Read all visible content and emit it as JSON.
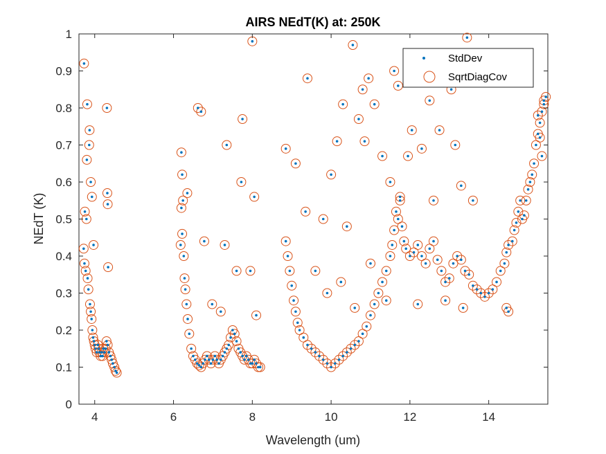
{
  "chart_data": {
    "type": "scatter",
    "title": "AIRS NEdT(K) at: 250K",
    "xlabel": "Wavelength (um)",
    "ylabel": "NEdT (K)",
    "xlim": [
      3.6,
      15.5
    ],
    "ylim": [
      0,
      1
    ],
    "xticks": [
      "4",
      "6",
      "8",
      "10",
      "12",
      "14"
    ],
    "yticks": [
      "0",
      "0.1",
      "0.2",
      "0.3",
      "0.4",
      "0.5",
      "0.6",
      "0.7",
      "0.8",
      "0.9",
      "1"
    ],
    "grid": false,
    "box": true,
    "legend": {
      "position": "top-right",
      "entries": [
        "StdDev",
        "SqrtDiagCov"
      ]
    },
    "colors": {
      "stddev": "#0072BD",
      "sqrtdiagcov": "#D95319",
      "axis": "#262626"
    },
    "series": [
      {
        "name": "StdDev",
        "marker": "dot",
        "x": [
          3.72,
          3.74,
          3.75,
          3.77,
          3.79,
          3.8,
          3.82,
          3.84,
          3.86,
          3.88,
          3.9,
          3.92,
          3.94,
          3.96,
          3.98,
          4.0,
          4.02,
          4.05,
          4.08,
          4.1,
          4.12,
          4.15,
          4.18,
          4.2,
          4.22,
          4.25,
          4.28,
          4.3,
          4.33,
          4.36,
          4.4,
          4.43,
          4.46,
          4.5,
          4.53,
          4.56,
          3.73,
          3.81,
          3.87,
          3.9,
          3.93,
          3.97,
          4.31,
          4.32,
          4.33,
          4.34,
          6.18,
          6.2,
          6.22,
          6.24,
          6.26,
          6.28,
          6.3,
          6.33,
          6.36,
          6.4,
          6.45,
          6.5,
          6.55,
          6.6,
          6.65,
          6.7,
          6.75,
          6.8,
          6.85,
          6.9,
          6.95,
          7.0,
          7.05,
          7.1,
          7.15,
          7.2,
          7.25,
          7.3,
          7.35,
          7.4,
          7.45,
          7.5,
          7.55,
          7.6,
          7.65,
          7.7,
          7.75,
          7.8,
          7.85,
          7.9,
          7.95,
          8.0,
          8.05,
          8.1,
          8.15,
          8.2,
          6.2,
          6.22,
          6.35,
          6.62,
          6.7,
          6.78,
          6.98,
          7.3,
          7.35,
          7.72,
          7.75,
          8.0,
          8.05,
          7.2,
          7.6,
          7.95,
          8.1,
          8.85,
          8.9,
          8.95,
          9.0,
          9.05,
          9.1,
          9.15,
          9.2,
          9.3,
          9.4,
          9.5,
          9.6,
          9.7,
          9.8,
          9.9,
          10.0,
          10.1,
          10.2,
          10.3,
          10.4,
          10.5,
          10.6,
          10.7,
          10.8,
          10.9,
          11.0,
          11.1,
          11.2,
          11.3,
          11.4,
          11.5,
          11.55,
          11.6,
          11.65,
          11.7,
          11.75,
          8.85,
          9.1,
          9.4,
          10.3,
          10.55,
          10.8,
          10.95,
          11.1,
          11.6,
          11.7,
          9.35,
          9.8,
          10.0,
          10.15,
          10.4,
          10.7,
          10.85,
          11.3,
          11.5,
          9.6,
          9.9,
          10.25,
          10.6,
          11.0,
          11.4,
          11.75,
          11.8,
          11.85,
          11.9,
          12.0,
          12.1,
          12.2,
          12.3,
          12.4,
          12.5,
          12.6,
          12.7,
          12.8,
          12.9,
          13.0,
          13.1,
          13.2,
          13.3,
          13.4,
          13.5,
          13.6,
          13.7,
          13.8,
          13.9,
          14.0,
          14.1,
          14.2,
          14.3,
          14.4,
          14.45,
          14.5,
          12.05,
          12.3,
          12.5,
          12.75,
          13.05,
          13.15,
          13.45,
          11.95,
          12.6,
          13.3,
          13.6,
          12.2,
          12.9,
          13.35,
          14.45,
          14.5,
          14.6,
          14.65,
          14.7,
          14.75,
          14.8,
          14.85,
          14.9,
          14.95,
          15.0,
          15.05,
          15.1,
          15.15,
          15.2,
          15.25,
          15.3,
          15.35,
          15.4,
          15.45,
          15.25,
          15.3,
          15.35,
          15.4
        ],
        "y": [
          0.42,
          0.38,
          0.52,
          0.36,
          0.5,
          0.66,
          0.34,
          0.31,
          0.7,
          0.27,
          0.25,
          0.23,
          0.2,
          0.18,
          0.17,
          0.16,
          0.15,
          0.14,
          0.16,
          0.15,
          0.14,
          0.13,
          0.14,
          0.13,
          0.15,
          0.14,
          0.15,
          0.17,
          0.16,
          0.14,
          0.13,
          0.12,
          0.11,
          0.1,
          0.09,
          0.085,
          0.92,
          0.81,
          0.74,
          0.6,
          0.56,
          0.43,
          0.8,
          0.57,
          0.54,
          0.37,
          0.43,
          0.68,
          0.62,
          0.55,
          0.4,
          0.34,
          0.31,
          0.27,
          0.23,
          0.19,
          0.15,
          0.13,
          0.12,
          0.11,
          0.105,
          0.1,
          0.11,
          0.12,
          0.13,
          0.12,
          0.11,
          0.12,
          0.13,
          0.12,
          0.11,
          0.12,
          0.13,
          0.14,
          0.15,
          0.16,
          0.18,
          0.2,
          0.19,
          0.17,
          0.15,
          0.14,
          0.13,
          0.12,
          0.13,
          0.12,
          0.11,
          0.11,
          0.12,
          0.11,
          0.1,
          0.1,
          0.53,
          0.46,
          0.57,
          0.8,
          0.79,
          0.44,
          0.27,
          0.43,
          0.7,
          0.6,
          0.77,
          0.98,
          0.56,
          0.25,
          0.36,
          0.36,
          0.24,
          0.44,
          0.4,
          0.36,
          0.32,
          0.28,
          0.25,
          0.22,
          0.2,
          0.18,
          0.16,
          0.15,
          0.14,
          0.13,
          0.12,
          0.11,
          0.1,
          0.11,
          0.12,
          0.13,
          0.14,
          0.15,
          0.16,
          0.17,
          0.19,
          0.21,
          0.24,
          0.27,
          0.3,
          0.33,
          0.36,
          0.4,
          0.43,
          0.47,
          0.52,
          0.5,
          0.55,
          0.69,
          0.65,
          0.88,
          0.81,
          0.97,
          0.85,
          0.88,
          0.81,
          0.9,
          0.86,
          0.52,
          0.5,
          0.62,
          0.71,
          0.48,
          0.77,
          0.71,
          0.67,
          0.6,
          0.36,
          0.3,
          0.33,
          0.26,
          0.38,
          0.28,
          0.56,
          0.48,
          0.44,
          0.42,
          0.4,
          0.41,
          0.43,
          0.4,
          0.38,
          0.42,
          0.44,
          0.39,
          0.36,
          0.33,
          0.34,
          0.38,
          0.4,
          0.39,
          0.36,
          0.35,
          0.32,
          0.31,
          0.3,
          0.29,
          0.3,
          0.31,
          0.33,
          0.36,
          0.38,
          0.41,
          0.43,
          0.74,
          0.69,
          0.82,
          0.74,
          0.85,
          0.7,
          0.99,
          0.67,
          0.55,
          0.59,
          0.55,
          0.27,
          0.28,
          0.26,
          0.26,
          0.25,
          0.44,
          0.47,
          0.49,
          0.52,
          0.55,
          0.5,
          0.51,
          0.55,
          0.58,
          0.6,
          0.62,
          0.65,
          0.7,
          0.73,
          0.76,
          0.79,
          0.81,
          0.83,
          0.78,
          0.72,
          0.67,
          0.82
        ]
      },
      {
        "name": "SqrtDiagCov",
        "marker": "open-circle",
        "x": [
          3.72,
          3.74,
          3.75,
          3.77,
          3.79,
          3.8,
          3.82,
          3.84,
          3.86,
          3.88,
          3.9,
          3.92,
          3.94,
          3.96,
          3.98,
          4.0,
          4.02,
          4.05,
          4.08,
          4.1,
          4.12,
          4.15,
          4.18,
          4.2,
          4.22,
          4.25,
          4.28,
          4.3,
          4.33,
          4.36,
          4.4,
          4.43,
          4.46,
          4.5,
          4.53,
          4.56,
          3.73,
          3.81,
          3.87,
          3.9,
          3.93,
          3.97,
          4.31,
          4.32,
          4.33,
          4.34,
          6.18,
          6.2,
          6.22,
          6.24,
          6.26,
          6.28,
          6.3,
          6.33,
          6.36,
          6.4,
          6.45,
          6.5,
          6.55,
          6.6,
          6.65,
          6.7,
          6.75,
          6.8,
          6.85,
          6.9,
          6.95,
          7.0,
          7.05,
          7.1,
          7.15,
          7.2,
          7.25,
          7.3,
          7.35,
          7.4,
          7.45,
          7.5,
          7.55,
          7.6,
          7.65,
          7.7,
          7.75,
          7.8,
          7.85,
          7.9,
          7.95,
          8.0,
          8.05,
          8.1,
          8.15,
          8.2,
          6.2,
          6.22,
          6.35,
          6.62,
          6.7,
          6.78,
          6.98,
          7.3,
          7.35,
          7.72,
          7.75,
          8.0,
          8.05,
          7.2,
          7.6,
          7.95,
          8.1,
          8.85,
          8.9,
          8.95,
          9.0,
          9.05,
          9.1,
          9.15,
          9.2,
          9.3,
          9.4,
          9.5,
          9.6,
          9.7,
          9.8,
          9.9,
          10.0,
          10.1,
          10.2,
          10.3,
          10.4,
          10.5,
          10.6,
          10.7,
          10.8,
          10.9,
          11.0,
          11.1,
          11.2,
          11.3,
          11.4,
          11.5,
          11.55,
          11.6,
          11.65,
          11.7,
          11.75,
          8.85,
          9.1,
          9.4,
          10.3,
          10.55,
          10.8,
          10.95,
          11.1,
          11.6,
          11.7,
          9.35,
          9.8,
          10.0,
          10.15,
          10.4,
          10.7,
          10.85,
          11.3,
          11.5,
          9.6,
          9.9,
          10.25,
          10.6,
          11.0,
          11.4,
          11.75,
          11.8,
          11.85,
          11.9,
          12.0,
          12.1,
          12.2,
          12.3,
          12.4,
          12.5,
          12.6,
          12.7,
          12.8,
          12.9,
          13.0,
          13.1,
          13.2,
          13.3,
          13.4,
          13.5,
          13.6,
          13.7,
          13.8,
          13.9,
          14.0,
          14.1,
          14.2,
          14.3,
          14.4,
          14.45,
          14.5,
          12.05,
          12.3,
          12.5,
          12.75,
          13.05,
          13.15,
          13.45,
          11.95,
          12.6,
          13.3,
          13.6,
          12.2,
          12.9,
          13.35,
          14.45,
          14.5,
          14.6,
          14.65,
          14.7,
          14.75,
          14.8,
          14.85,
          14.9,
          14.95,
          15.0,
          15.05,
          15.1,
          15.15,
          15.2,
          15.25,
          15.3,
          15.35,
          15.4,
          15.45,
          15.25,
          15.3,
          15.35,
          15.4
        ],
        "y": [
          0.42,
          0.38,
          0.52,
          0.36,
          0.5,
          0.66,
          0.34,
          0.31,
          0.7,
          0.27,
          0.25,
          0.23,
          0.2,
          0.18,
          0.17,
          0.16,
          0.15,
          0.14,
          0.16,
          0.15,
          0.14,
          0.13,
          0.14,
          0.13,
          0.15,
          0.14,
          0.15,
          0.17,
          0.16,
          0.14,
          0.13,
          0.12,
          0.11,
          0.1,
          0.09,
          0.085,
          0.92,
          0.81,
          0.74,
          0.6,
          0.56,
          0.43,
          0.8,
          0.57,
          0.54,
          0.37,
          0.43,
          0.68,
          0.62,
          0.55,
          0.4,
          0.34,
          0.31,
          0.27,
          0.23,
          0.19,
          0.15,
          0.13,
          0.12,
          0.11,
          0.105,
          0.1,
          0.11,
          0.12,
          0.13,
          0.12,
          0.11,
          0.12,
          0.13,
          0.12,
          0.11,
          0.12,
          0.13,
          0.14,
          0.15,
          0.16,
          0.18,
          0.2,
          0.19,
          0.17,
          0.15,
          0.14,
          0.13,
          0.12,
          0.13,
          0.12,
          0.11,
          0.11,
          0.12,
          0.11,
          0.1,
          0.1,
          0.53,
          0.46,
          0.57,
          0.8,
          0.79,
          0.44,
          0.27,
          0.43,
          0.7,
          0.6,
          0.77,
          0.98,
          0.56,
          0.25,
          0.36,
          0.36,
          0.24,
          0.44,
          0.4,
          0.36,
          0.32,
          0.28,
          0.25,
          0.22,
          0.2,
          0.18,
          0.16,
          0.15,
          0.14,
          0.13,
          0.12,
          0.11,
          0.1,
          0.11,
          0.12,
          0.13,
          0.14,
          0.15,
          0.16,
          0.17,
          0.19,
          0.21,
          0.24,
          0.27,
          0.3,
          0.33,
          0.36,
          0.4,
          0.43,
          0.47,
          0.52,
          0.5,
          0.55,
          0.69,
          0.65,
          0.88,
          0.81,
          0.97,
          0.85,
          0.88,
          0.81,
          0.9,
          0.86,
          0.52,
          0.5,
          0.62,
          0.71,
          0.48,
          0.77,
          0.71,
          0.67,
          0.6,
          0.36,
          0.3,
          0.33,
          0.26,
          0.38,
          0.28,
          0.56,
          0.48,
          0.44,
          0.42,
          0.4,
          0.41,
          0.43,
          0.4,
          0.38,
          0.42,
          0.44,
          0.39,
          0.36,
          0.33,
          0.34,
          0.38,
          0.4,
          0.39,
          0.36,
          0.35,
          0.32,
          0.31,
          0.3,
          0.29,
          0.3,
          0.31,
          0.33,
          0.36,
          0.38,
          0.41,
          0.43,
          0.74,
          0.69,
          0.82,
          0.74,
          0.85,
          0.7,
          0.99,
          0.67,
          0.55,
          0.59,
          0.55,
          0.27,
          0.28,
          0.26,
          0.26,
          0.25,
          0.44,
          0.47,
          0.49,
          0.52,
          0.55,
          0.5,
          0.51,
          0.55,
          0.58,
          0.6,
          0.62,
          0.65,
          0.7,
          0.73,
          0.76,
          0.79,
          0.81,
          0.83,
          0.78,
          0.72,
          0.67,
          0.82
        ]
      }
    ]
  }
}
